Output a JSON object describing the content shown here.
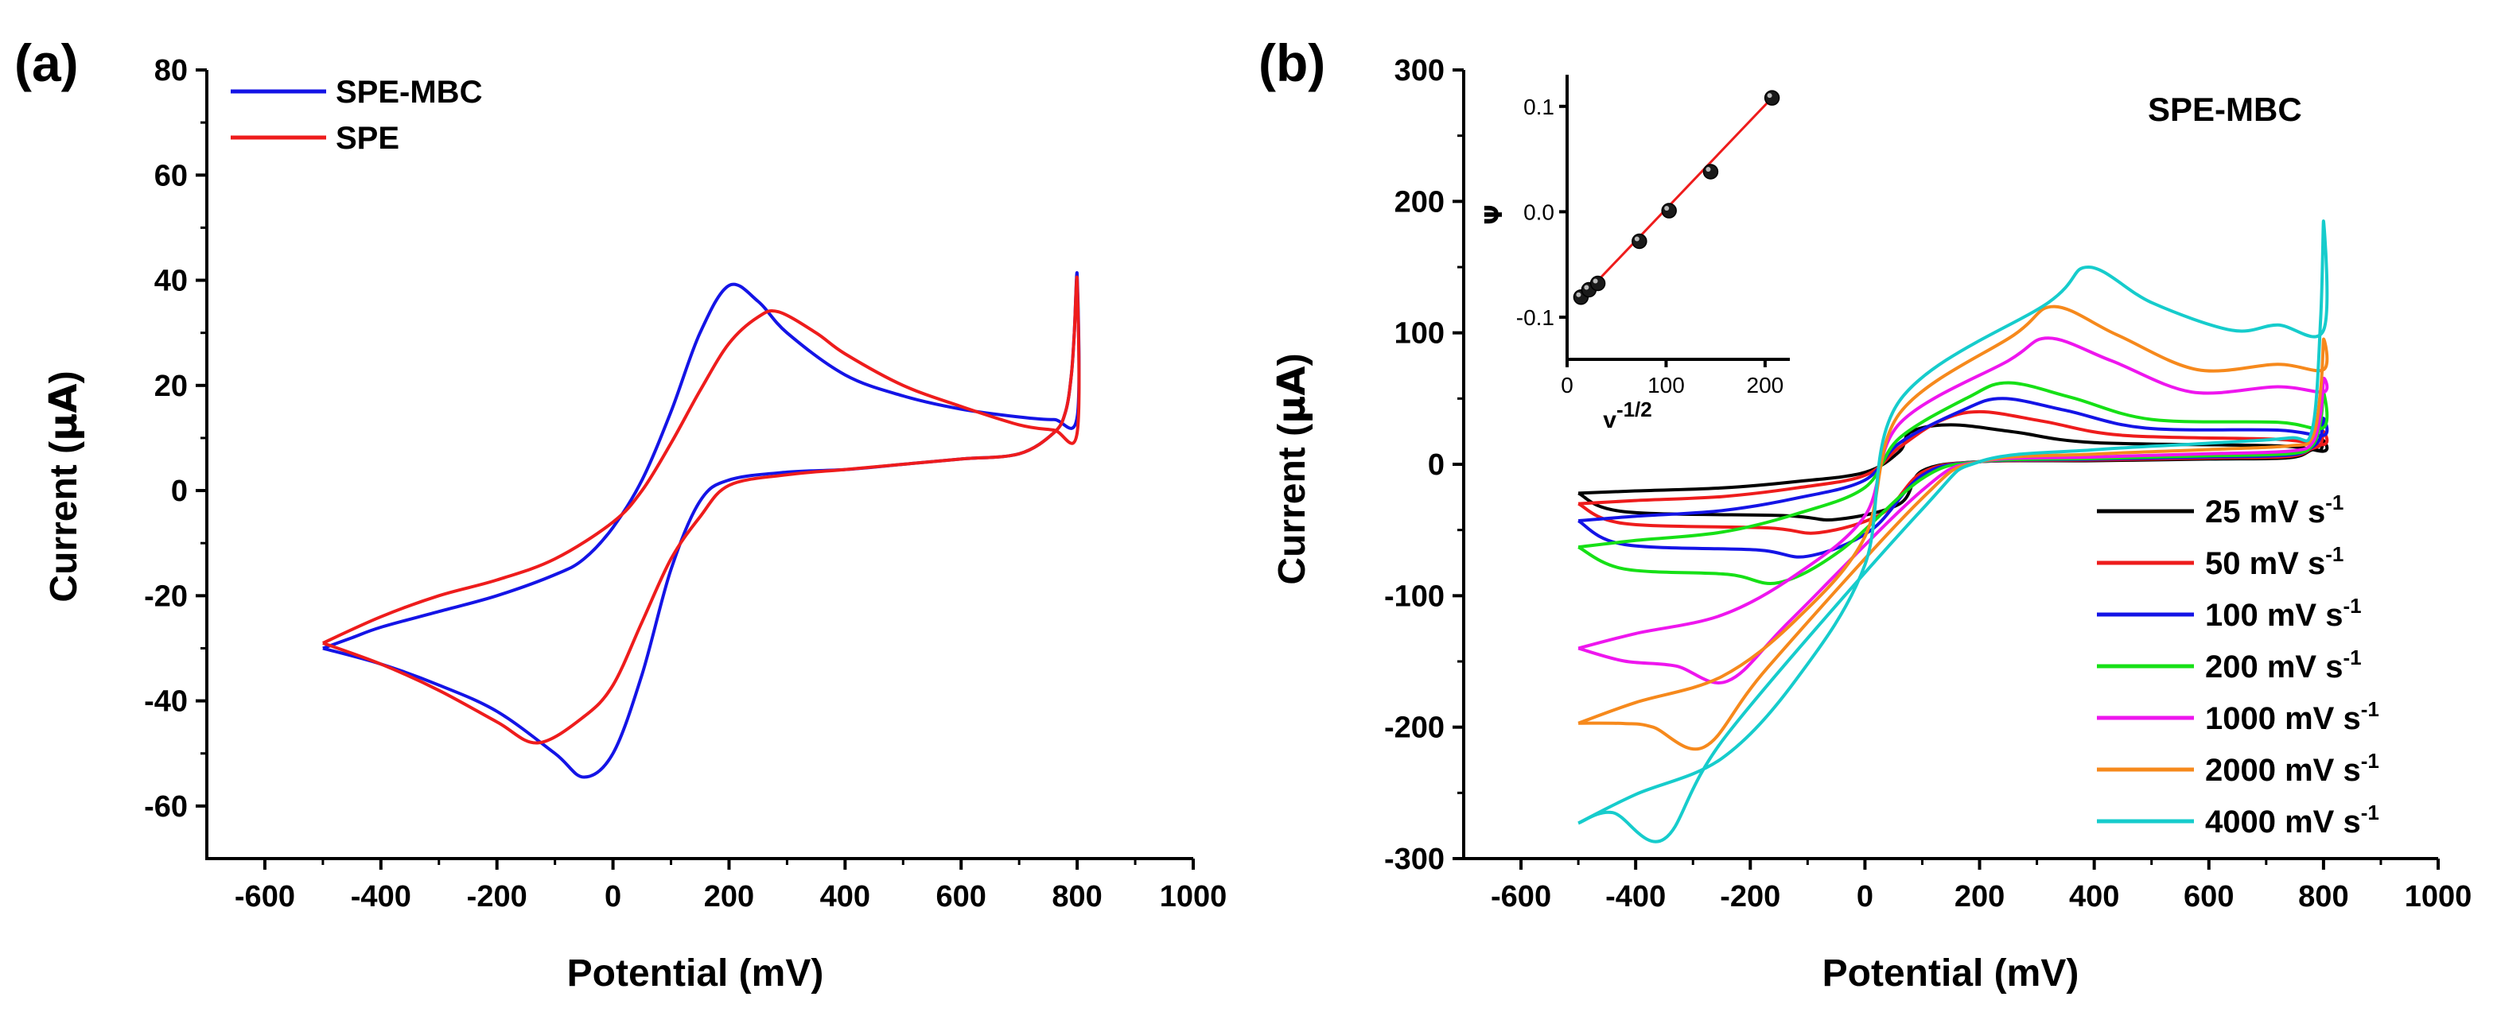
{
  "panels": {
    "a": {
      "label": "(a)"
    },
    "b": {
      "label": "(b)",
      "annotation": "SPE-MBC"
    }
  },
  "chart_data": [
    {
      "id": "a",
      "type": "line",
      "title": "",
      "xlabel": "Potential (mV)",
      "ylabel_prefix": "Current (",
      "ylabel_unit": "µA",
      "ylabel_suffix": ")",
      "xlim": [
        -700,
        1000
      ],
      "ylim": [
        -70,
        80
      ],
      "xticks": [
        -600,
        -400,
        -200,
        0,
        200,
        400,
        600,
        800,
        1000
      ],
      "yticks": [
        -60,
        -40,
        -20,
        0,
        20,
        40,
        60,
        80
      ],
      "legend_position": "top-left",
      "series": [
        {
          "name": "SPE-MBC",
          "color": "#1414e6",
          "points": [
            [
              -500,
              -30
            ],
            [
              -450,
              -28
            ],
            [
              -400,
              -26
            ],
            [
              -300,
              -23
            ],
            [
              -200,
              -20
            ],
            [
              -100,
              -16
            ],
            [
              -50,
              -13
            ],
            [
              0,
              -7
            ],
            [
              50,
              2
            ],
            [
              100,
              15
            ],
            [
              150,
              30
            ],
            [
              200,
              39
            ],
            [
              250,
              36
            ],
            [
              300,
              30
            ],
            [
              400,
              22
            ],
            [
              500,
              18
            ],
            [
              600,
              15.5
            ],
            [
              700,
              14
            ],
            [
              760,
              13.5
            ],
            [
              800,
              14
            ],
            [
              800,
              41
            ],
            [
              795,
              30
            ],
            [
              790,
              22
            ],
            [
              780,
              15
            ],
            [
              760,
              11
            ],
            [
              700,
              7
            ],
            [
              600,
              6
            ],
            [
              500,
              5
            ],
            [
              400,
              4
            ],
            [
              300,
              3.5
            ],
            [
              200,
              2
            ],
            [
              150,
              -2
            ],
            [
              100,
              -15
            ],
            [
              50,
              -35
            ],
            [
              0,
              -50
            ],
            [
              -50,
              -54.5
            ],
            [
              -100,
              -50
            ],
            [
              -200,
              -42
            ],
            [
              -300,
              -37
            ],
            [
              -400,
              -33
            ],
            [
              -500,
              -30
            ]
          ]
        },
        {
          "name": "SPE",
          "color": "#ee1c1c",
          "points": [
            [
              -500,
              -29
            ],
            [
              -400,
              -24
            ],
            [
              -300,
              -20
            ],
            [
              -200,
              -17
            ],
            [
              -100,
              -13
            ],
            [
              0,
              -6
            ],
            [
              50,
              0
            ],
            [
              100,
              9
            ],
            [
              150,
              19
            ],
            [
              200,
              28
            ],
            [
              250,
              33
            ],
            [
              285,
              34
            ],
            [
              350,
              30
            ],
            [
              400,
              26
            ],
            [
              500,
              20
            ],
            [
              600,
              16
            ],
            [
              700,
              12.5
            ],
            [
              760,
              11.5
            ],
            [
              800,
              11
            ],
            [
              800,
              40
            ],
            [
              795,
              30
            ],
            [
              790,
              22
            ],
            [
              780,
              15
            ],
            [
              760,
              11
            ],
            [
              700,
              7
            ],
            [
              600,
              6
            ],
            [
              500,
              5
            ],
            [
              400,
              4
            ],
            [
              300,
              3
            ],
            [
              200,
              1
            ],
            [
              150,
              -5
            ],
            [
              100,
              -13
            ],
            [
              50,
              -25
            ],
            [
              0,
              -37
            ],
            [
              -50,
              -43
            ],
            [
              -130,
              -48
            ],
            [
              -200,
              -44
            ],
            [
              -300,
              -38
            ],
            [
              -400,
              -33
            ],
            [
              -500,
              -29
            ]
          ]
        }
      ]
    },
    {
      "id": "b",
      "type": "line",
      "title": "",
      "xlabel": "Potential (mV)",
      "ylabel_prefix": "Current (",
      "ylabel_unit": "µA",
      "ylabel_suffix": ")",
      "xlim": [
        -700,
        1000
      ],
      "ylim": [
        -300,
        300
      ],
      "xticks": [
        -600,
        -400,
        -200,
        0,
        200,
        400,
        600,
        800,
        1000
      ],
      "yticks": [
        -300,
        -200,
        -100,
        0,
        100,
        200,
        300
      ],
      "legend_position": "bottom-right",
      "legend_unit": "mV s",
      "legend_unit_sup": "-1",
      "series": [
        {
          "name": "25 mV s-1",
          "rate": "25",
          "color": "#000000",
          "anodic_peak": [
            150,
            30
          ],
          "cathodic_peak": [
            -50,
            -42
          ],
          "start": -22,
          "end": 10,
          "rev_low": 5,
          "rev_high": 18,
          "rise": 45
        },
        {
          "name": "50 mV s-1",
          "rate": "50",
          "color": "#ee1c1c",
          "anodic_peak": [
            200,
            40
          ],
          "cathodic_peak": [
            -80,
            -52
          ],
          "start": -30,
          "end": 15,
          "rev_low": 6,
          "rev_high": 25,
          "rise": 45
        },
        {
          "name": "100 mV s-1",
          "rate": "100",
          "color": "#1414e6",
          "anodic_peak": [
            240,
            50
          ],
          "cathodic_peak": [
            -100,
            -70
          ],
          "start": -43,
          "end": 22,
          "rev_low": 7,
          "rev_high": 35,
          "rise": 50
        },
        {
          "name": "200 mV s-1",
          "rate": "200",
          "color": "#16e016",
          "anodic_peak": [
            250,
            62
          ],
          "cathodic_peak": [
            -150,
            -90
          ],
          "start": -63,
          "end": 28,
          "rev_low": 8,
          "rev_high": 55,
          "rise": 55
        },
        {
          "name": "1000 mV s-1",
          "rate": "1000",
          "color": "#ee16ee",
          "anodic_peak": [
            320,
            96
          ],
          "cathodic_peak": [
            -240,
            -165
          ],
          "start": -140,
          "end": 55,
          "rev_low": 10,
          "rev_high": 65,
          "rise": 60
        },
        {
          "name": "2000 mV s-1",
          "rate": "2000",
          "color": "#f6891c",
          "anodic_peak": [
            330,
            120
          ],
          "cathodic_peak": [
            -280,
            -215
          ],
          "start": -197,
          "end": 72,
          "rev_low": 14,
          "rev_high": 95,
          "rise": 65
        },
        {
          "name": "4000 mV s-1",
          "rate": "4000",
          "color": "#16cccc",
          "anodic_peak": [
            390,
            150
          ],
          "cathodic_peak": [
            -350,
            -285
          ],
          "start": -273,
          "end": 102,
          "rev_low": 20,
          "rev_high": 185,
          "rise": 70
        }
      ]
    },
    {
      "id": "b-inset",
      "type": "scatter",
      "xlabel_base": "v",
      "xlabel_sup": "-1/2",
      "ylabel": "Ψ",
      "xlim": [
        0,
        225
      ],
      "ylim": [
        -0.14,
        0.13
      ],
      "xticks": [
        0,
        100,
        200
      ],
      "yticks": [
        -0.1,
        0.0,
        0.1
      ],
      "ytick_labels": [
        "-0.1",
        "0.0",
        "0.1"
      ],
      "points": [
        [
          14,
          -0.081
        ],
        [
          22,
          -0.074
        ],
        [
          31,
          -0.068
        ],
        [
          73,
          -0.028
        ],
        [
          103,
          0.001
        ],
        [
          145,
          0.038
        ],
        [
          207,
          0.108
        ]
      ],
      "fit_line": {
        "x": [
          10,
          210
        ],
        "y": [
          -0.086,
          0.111
        ],
        "color": "#ee1c1c"
      }
    }
  ]
}
